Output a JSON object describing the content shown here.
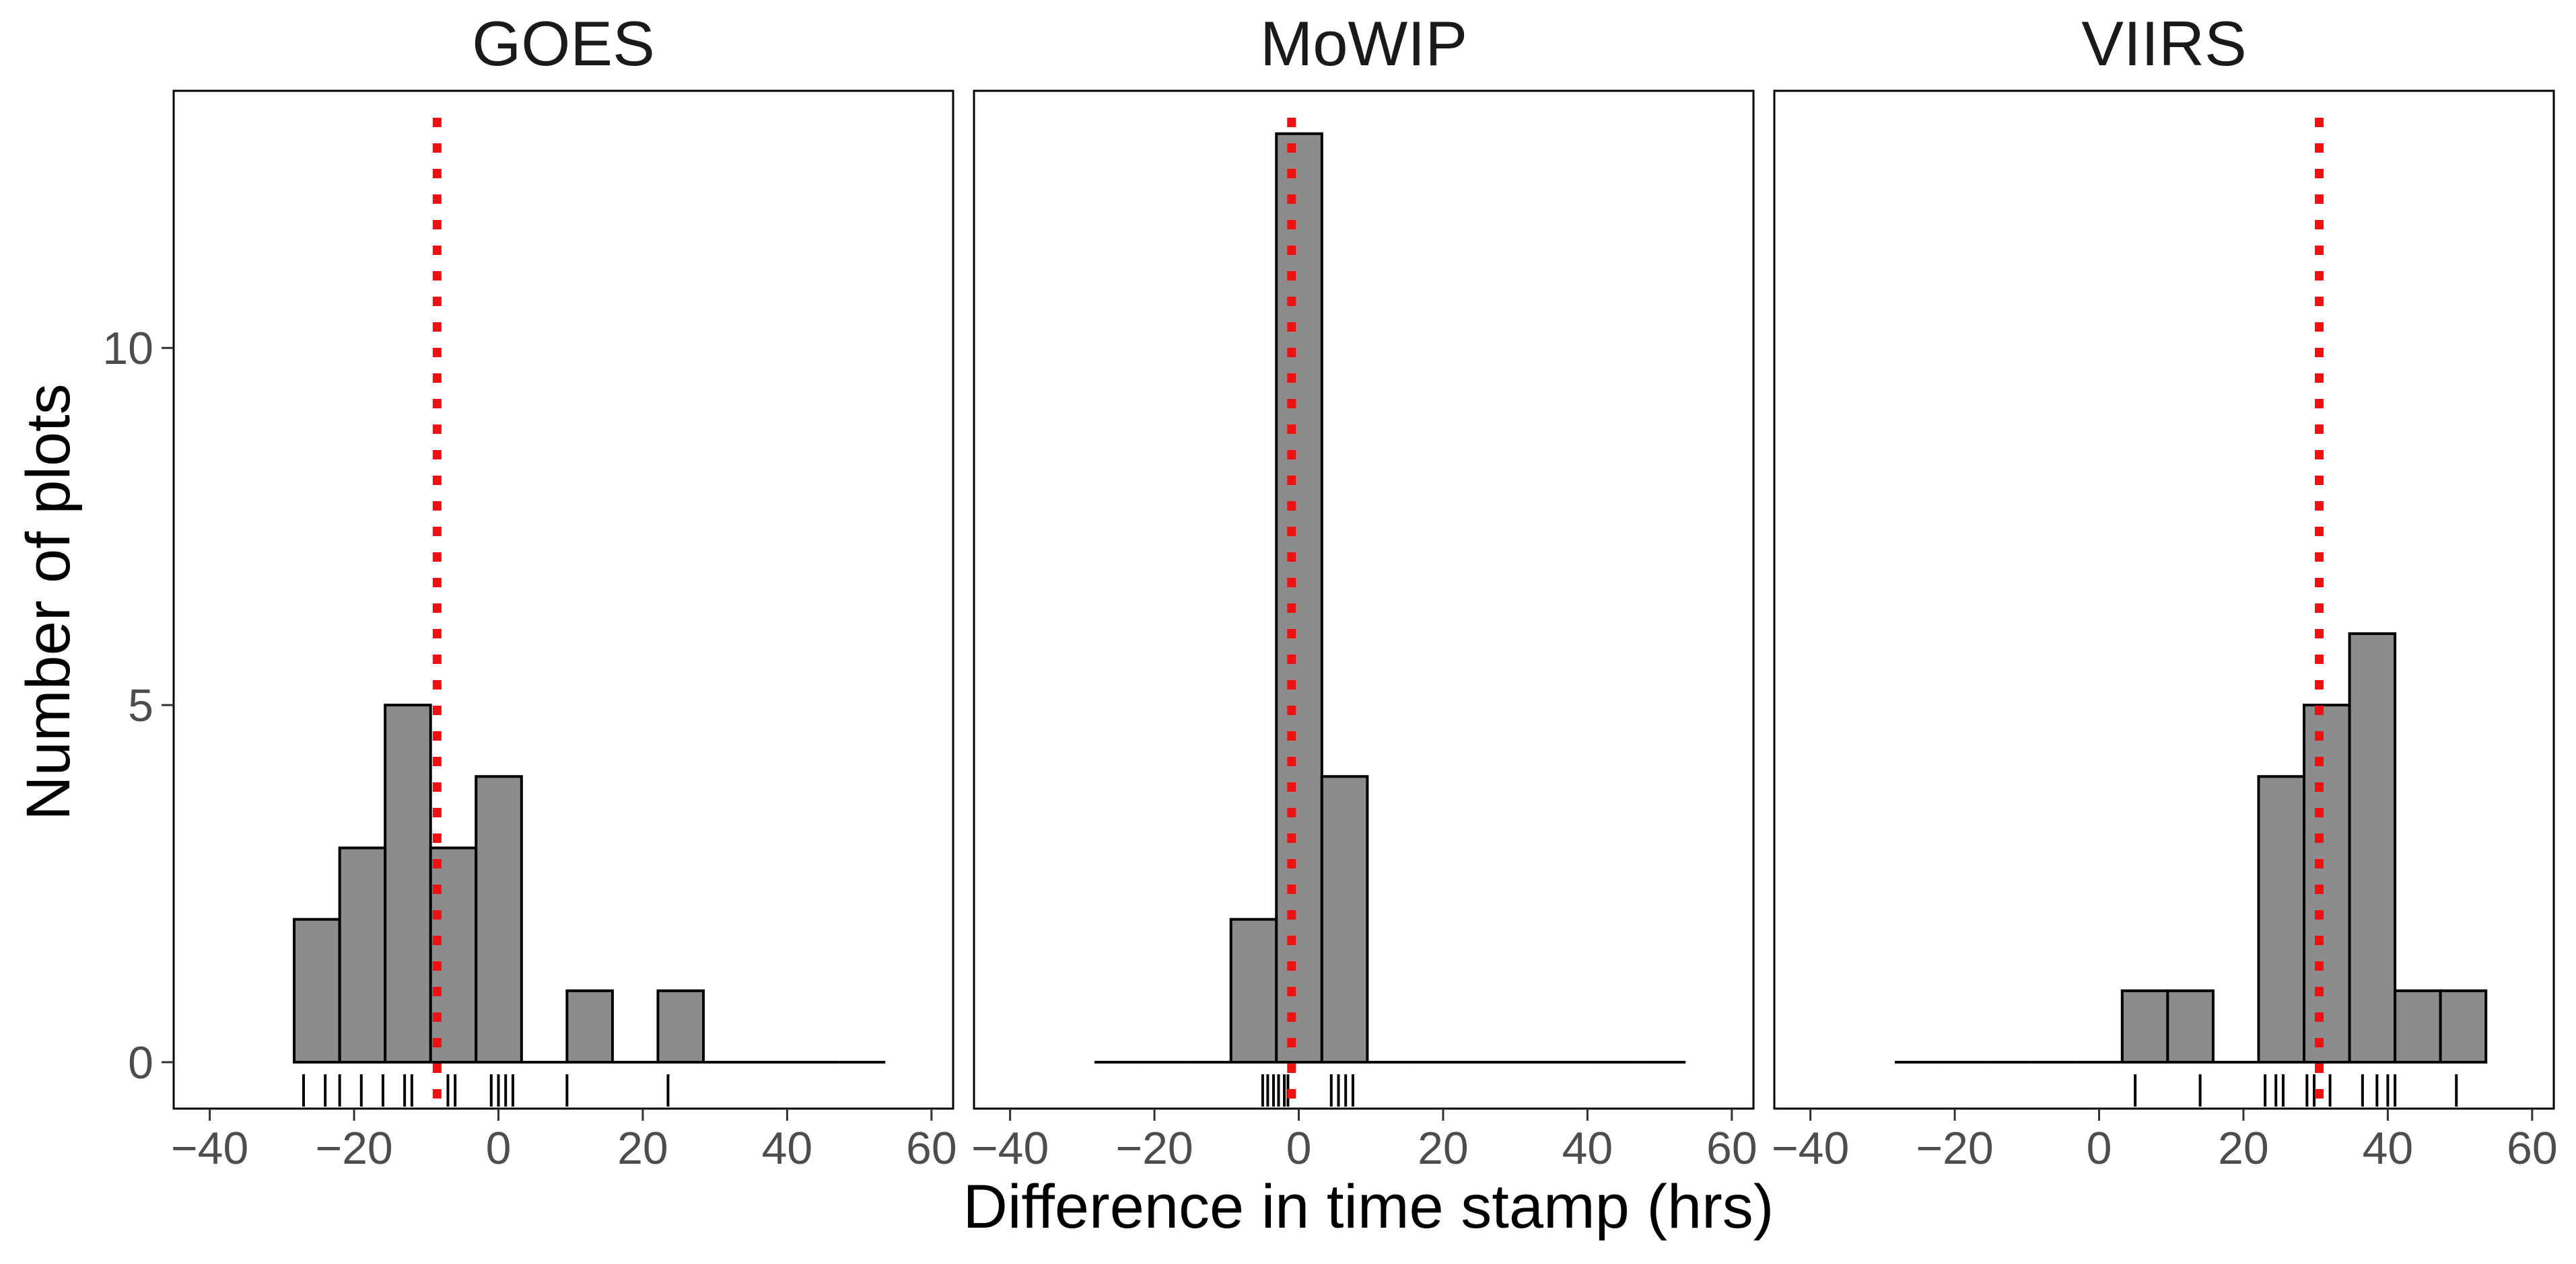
{
  "chart_data": {
    "type": "bar",
    "subtype": "faceted-histogram",
    "title": "",
    "xlabel": "Difference in time stamp (hrs)",
    "ylabel": "Number of plots",
    "xlim": [
      -45,
      63
    ],
    "ylim": [
      -0.65,
      13.6
    ],
    "x_ticks": [
      -40,
      -20,
      0,
      20,
      40,
      60
    ],
    "x_tick_labels": [
      "−40",
      "−20",
      "0",
      "20",
      "40",
      "60"
    ],
    "y_ticks": [
      0,
      5,
      10
    ],
    "y_tick_labels": [
      "0",
      "5",
      "10"
    ],
    "bin_width": 6.3,
    "grid": false,
    "colors": {
      "bar_fill": "#8c8c8c",
      "bar_stroke": "#000000",
      "reference_line": "#ee1111",
      "rug": "#000000",
      "panel_border": "#000000"
    },
    "panels": [
      {
        "name": "GOES",
        "bins": {
          "start": -28.3,
          "counts": [
            2,
            3,
            5,
            3,
            4,
            0,
            1,
            0,
            1,
            0,
            0,
            0,
            0
          ]
        },
        "reference_x": -8.5,
        "rug": [
          -27,
          -24,
          -22,
          -19,
          -16,
          -13,
          -12,
          -7,
          -6,
          -1,
          0,
          1,
          2,
          9.5,
          23.5
        ]
      },
      {
        "name": "MoWIP",
        "bins": {
          "start": -28.3,
          "counts": [
            0,
            0,
            0,
            2,
            13,
            4,
            0,
            0,
            0,
            0,
            0,
            0,
            0
          ]
        },
        "reference_x": -1,
        "rug": [
          -5,
          -4.3,
          -3.5,
          -2.8,
          -2,
          -1.5,
          4.5,
          5.5,
          6.5,
          7.5
        ]
      },
      {
        "name": "VIIRS",
        "bins": {
          "start": -28.3,
          "counts": [
            0,
            0,
            0,
            0,
            0,
            1,
            1,
            0,
            4,
            5,
            6,
            1,
            1
          ]
        },
        "reference_x": 30.5,
        "rug": [
          5,
          14,
          23,
          24.5,
          25.5,
          28.8,
          29.8,
          32,
          36.5,
          38.5,
          40,
          41,
          49.5
        ]
      }
    ]
  }
}
